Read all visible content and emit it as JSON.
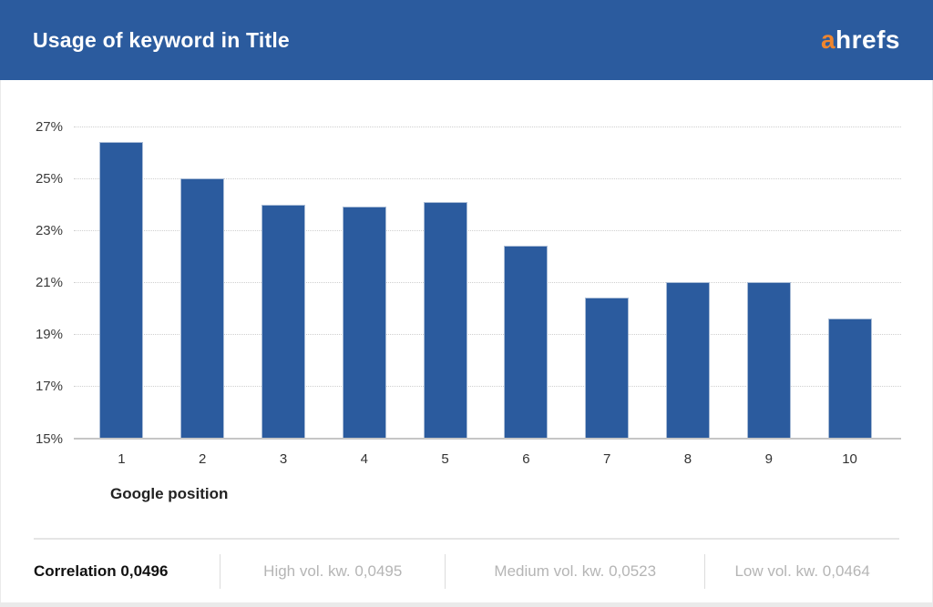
{
  "header": {
    "title": "Usage of keyword in Title",
    "logo": {
      "first_letter": "a",
      "rest": "hrefs"
    }
  },
  "colors": {
    "header_bg": "#2b5b9e",
    "bar_fill": "#2b5b9e",
    "bar_border": "#a9bcd6",
    "logo_orange": "#f0862e",
    "grid_dotted": "#cfcfcf",
    "baseline": "#c6c6c6",
    "axis_text": "#3b3b3b",
    "footer_muted": "#b5b5b5",
    "footer_strong": "#111111"
  },
  "chart_data": {
    "type": "bar",
    "title": "Usage of keyword in Title",
    "categories": [
      "1",
      "2",
      "3",
      "4",
      "5",
      "6",
      "7",
      "8",
      "9",
      "10"
    ],
    "values": [
      26.4,
      25.0,
      24.0,
      23.9,
      24.1,
      22.4,
      20.4,
      21.0,
      21.0,
      19.6
    ],
    "xlabel": "Google position",
    "ylabel": "",
    "ylim": [
      15,
      27
    ],
    "yticks": [
      15,
      17,
      19,
      21,
      23,
      25,
      27
    ],
    "ytick_suffix": "%",
    "grid": "horizontal-dotted",
    "legend": "none",
    "bar_color": "#2b5b9e"
  },
  "footer": {
    "correlation_label": "Correlation 0,0496",
    "items": [
      "High vol. kw. 0,0495",
      "Medium vol. kw. 0,0523",
      "Low vol. kw. 0,0464"
    ]
  }
}
